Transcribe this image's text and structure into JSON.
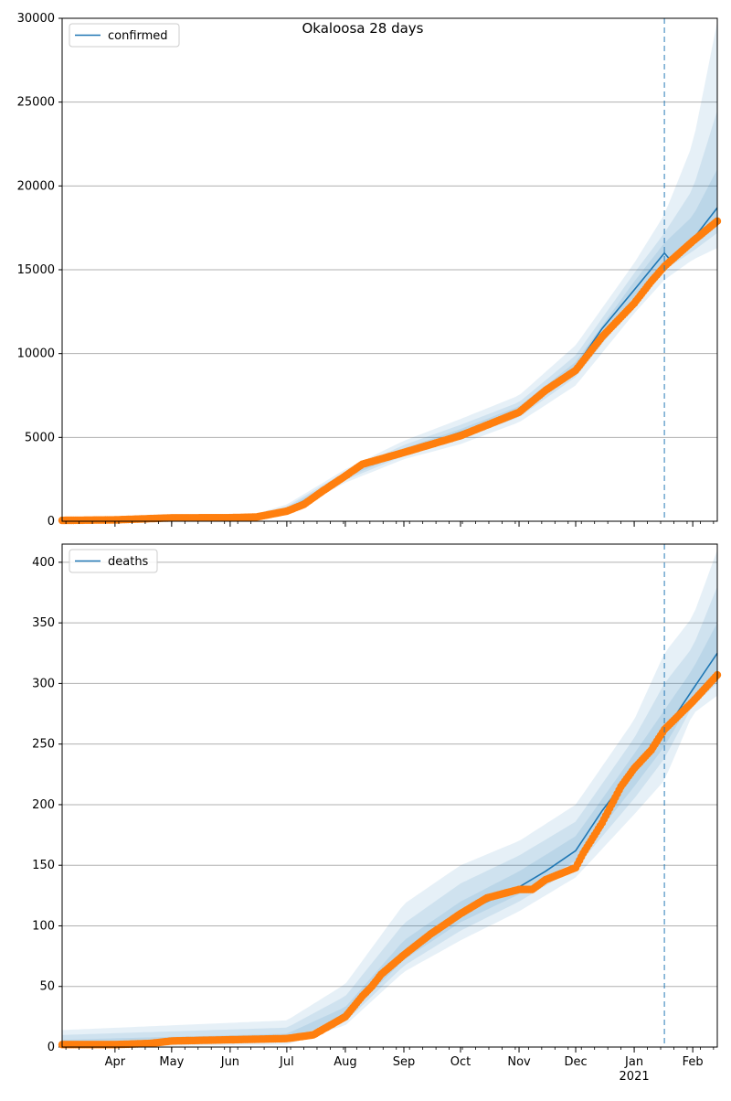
{
  "title": "Okaloosa 28 days",
  "colors": {
    "model_line": "#1f77b4",
    "observed": "#ff7f0e",
    "band": "#1f77b4",
    "grid": "#b0b0b0",
    "cutoff": "#1f77b4"
  },
  "x_axis": {
    "ticks": [
      {
        "date": "2020-04-01",
        "label": "Apr"
      },
      {
        "date": "2020-05-01",
        "label": "May"
      },
      {
        "date": "2020-06-01",
        "label": "Jun"
      },
      {
        "date": "2020-07-01",
        "label": "Jul"
      },
      {
        "date": "2020-08-01",
        "label": "Aug"
      },
      {
        "date": "2020-09-01",
        "label": "Sep"
      },
      {
        "date": "2020-10-01",
        "label": "Oct"
      },
      {
        "date": "2020-11-01",
        "label": "Nov"
      },
      {
        "date": "2020-12-01",
        "label": "Dec"
      },
      {
        "date": "2021-01-01",
        "label": "Jan",
        "sublabel": "2021"
      },
      {
        "date": "2021-02-01",
        "label": "Feb"
      }
    ],
    "xlim": [
      "2020-03-04",
      "2021-02-14"
    ],
    "cutoff_date": "2021-01-17"
  },
  "chart_data": [
    {
      "type": "line",
      "legend": "confirmed",
      "legend_position": "upper-left",
      "ylim": [
        0,
        30000
      ],
      "yticks": [
        "0",
        "5000",
        "10000",
        "15000",
        "20000",
        "25000",
        "30000"
      ],
      "grid": "horizontal",
      "model": [
        [
          "2020-03-04",
          50
        ],
        [
          "2020-04-01",
          80
        ],
        [
          "2020-05-01",
          200
        ],
        [
          "2020-06-01",
          220
        ],
        [
          "2020-06-15",
          280
        ],
        [
          "2020-07-01",
          700
        ],
        [
          "2020-07-15",
          1500
        ],
        [
          "2020-08-01",
          2700
        ],
        [
          "2020-08-10",
          3400
        ],
        [
          "2020-09-01",
          4200
        ],
        [
          "2020-10-01",
          5300
        ],
        [
          "2020-11-01",
          6600
        ],
        [
          "2020-11-15",
          7800
        ],
        [
          "2020-12-01",
          9200
        ],
        [
          "2020-12-15",
          11500
        ],
        [
          "2021-01-01",
          13800
        ],
        [
          "2021-01-17",
          16000
        ],
        [
          "2021-01-20",
          15600
        ],
        [
          "2021-02-01",
          16800
        ],
        [
          "2021-02-14",
          18700
        ]
      ],
      "observed": [
        [
          "2020-03-04",
          50
        ],
        [
          "2020-04-01",
          80
        ],
        [
          "2020-05-01",
          200
        ],
        [
          "2020-06-01",
          210
        ],
        [
          "2020-06-15",
          250
        ],
        [
          "2020-07-01",
          600
        ],
        [
          "2020-07-10",
          1000
        ],
        [
          "2020-07-20",
          1800
        ],
        [
          "2020-08-01",
          2700
        ],
        [
          "2020-08-10",
          3400
        ],
        [
          "2020-09-01",
          4100
        ],
        [
          "2020-10-01",
          5100
        ],
        [
          "2020-11-01",
          6500
        ],
        [
          "2020-11-15",
          7800
        ],
        [
          "2020-12-01",
          9000
        ],
        [
          "2020-12-15",
          11000
        ],
        [
          "2021-01-01",
          13000
        ],
        [
          "2021-01-10",
          14300
        ],
        [
          "2021-01-17",
          15200
        ],
        [
          "2021-02-01",
          16700
        ],
        [
          "2021-02-14",
          17900
        ]
      ],
      "bands": [
        {
          "name": "outer",
          "lower": [
            [
              "2020-03-04",
              0
            ],
            [
              "2020-06-15",
              150
            ],
            [
              "2020-07-01",
              450
            ],
            [
              "2020-08-01",
              2300
            ],
            [
              "2020-09-01",
              3700
            ],
            [
              "2020-10-01",
              4600
            ],
            [
              "2020-11-01",
              5900
            ],
            [
              "2020-12-01",
              8100
            ],
            [
              "2021-01-01",
              12400
            ],
            [
              "2021-01-17",
              14400
            ],
            [
              "2021-02-01",
              15600
            ],
            [
              "2021-02-14",
              16300
            ]
          ],
          "upper": [
            [
              "2020-03-04",
              200
            ],
            [
              "2020-06-15",
              450
            ],
            [
              "2020-07-01",
              1000
            ],
            [
              "2020-08-01",
              3100
            ],
            [
              "2020-09-01",
              4800
            ],
            [
              "2020-10-01",
              6100
            ],
            [
              "2020-11-01",
              7500
            ],
            [
              "2020-12-01",
              10500
            ],
            [
              "2021-01-01",
              15400
            ],
            [
              "2021-01-17",
              18300
            ],
            [
              "2021-02-01",
              22500
            ],
            [
              "2021-02-14",
              29800
            ]
          ]
        },
        {
          "name": "middle",
          "lower": [
            [
              "2020-03-04",
              20
            ],
            [
              "2020-06-15",
              200
            ],
            [
              "2020-07-01",
              550
            ],
            [
              "2020-08-01",
              2450
            ],
            [
              "2020-09-01",
              3900
            ],
            [
              "2020-10-01",
              4900
            ],
            [
              "2020-11-01",
              6200
            ],
            [
              "2020-12-01",
              8600
            ],
            [
              "2021-01-01",
              13000
            ],
            [
              "2021-01-17",
              15000
            ],
            [
              "2021-02-01",
              16100
            ],
            [
              "2021-02-14",
              17200
            ]
          ],
          "upper": [
            [
              "2020-03-04",
              120
            ],
            [
              "2020-06-15",
              380
            ],
            [
              "2020-07-01",
              880
            ],
            [
              "2020-08-01",
              2950
            ],
            [
              "2020-09-01",
              4550
            ],
            [
              "2020-10-01",
              5750
            ],
            [
              "2020-11-01",
              7100
            ],
            [
              "2020-12-01",
              9900
            ],
            [
              "2021-01-01",
              14800
            ],
            [
              "2021-01-17",
              17200
            ],
            [
              "2021-02-01",
              19800
            ],
            [
              "2021-02-14",
              24500
            ]
          ]
        },
        {
          "name": "inner",
          "lower": [
            [
              "2020-03-04",
              35
            ],
            [
              "2020-06-15",
              240
            ],
            [
              "2020-07-01",
              620
            ],
            [
              "2020-08-01",
              2580
            ],
            [
              "2020-09-01",
              4050
            ],
            [
              "2020-10-01",
              5100
            ],
            [
              "2020-11-01",
              6400
            ],
            [
              "2020-12-01",
              8900
            ],
            [
              "2021-01-01",
              13400
            ],
            [
              "2021-01-17",
              15500
            ],
            [
              "2021-02-01",
              16500
            ],
            [
              "2021-02-14",
              17800
            ]
          ],
          "upper": [
            [
              "2020-03-04",
              80
            ],
            [
              "2020-06-15",
              330
            ],
            [
              "2020-07-01",
              790
            ],
            [
              "2020-08-01",
              2820
            ],
            [
              "2020-09-01",
              4350
            ],
            [
              "2020-10-01",
              5500
            ],
            [
              "2020-11-01",
              6850
            ],
            [
              "2020-12-01",
              9500
            ],
            [
              "2021-01-01",
              14300
            ],
            [
              "2021-01-17",
              16600
            ],
            [
              "2021-02-01",
              18200
            ],
            [
              "2021-02-14",
              21000
            ]
          ]
        }
      ]
    },
    {
      "type": "line",
      "legend": "deaths",
      "legend_position": "upper-left",
      "ylim": [
        0,
        415
      ],
      "yticks": [
        "0",
        "50",
        "100",
        "150",
        "200",
        "250",
        "300",
        "350",
        "400"
      ],
      "grid": "horizontal",
      "model": [
        [
          "2020-03-04",
          2
        ],
        [
          "2020-04-01",
          3
        ],
        [
          "2020-05-01",
          5
        ],
        [
          "2020-06-01",
          7
        ],
        [
          "2020-07-01",
          8
        ],
        [
          "2020-07-15",
          12
        ],
        [
          "2020-08-01",
          28
        ],
        [
          "2020-08-15",
          52
        ],
        [
          "2020-09-01",
          78
        ],
        [
          "2020-09-15",
          96
        ],
        [
          "2020-10-01",
          110
        ],
        [
          "2020-10-15",
          120
        ],
        [
          "2020-11-01",
          132
        ],
        [
          "2020-11-15",
          145
        ],
        [
          "2020-12-01",
          162
        ],
        [
          "2020-12-15",
          195
        ],
        [
          "2021-01-01",
          230
        ],
        [
          "2021-01-17",
          260
        ],
        [
          "2021-02-01",
          295
        ],
        [
          "2021-02-14",
          325
        ]
      ],
      "observed": [
        [
          "2020-03-04",
          2
        ],
        [
          "2020-04-01",
          2
        ],
        [
          "2020-04-20",
          3
        ],
        [
          "2020-05-01",
          5
        ],
        [
          "2020-06-01",
          6
        ],
        [
          "2020-07-01",
          7
        ],
        [
          "2020-07-15",
          10
        ],
        [
          "2020-08-01",
          25
        ],
        [
          "2020-08-10",
          42
        ],
        [
          "2020-08-15",
          50
        ],
        [
          "2020-08-20",
          60
        ],
        [
          "2020-09-01",
          76
        ],
        [
          "2020-09-15",
          93
        ],
        [
          "2020-10-01",
          110
        ],
        [
          "2020-10-15",
          123
        ],
        [
          "2020-11-01",
          130
        ],
        [
          "2020-11-08",
          130
        ],
        [
          "2020-11-15",
          138
        ],
        [
          "2020-12-01",
          148
        ],
        [
          "2020-12-05",
          160
        ],
        [
          "2020-12-15",
          185
        ],
        [
          "2020-12-25",
          215
        ],
        [
          "2021-01-01",
          230
        ],
        [
          "2021-01-10",
          245
        ],
        [
          "2021-01-17",
          262
        ],
        [
          "2021-02-01",
          285
        ],
        [
          "2021-02-14",
          307
        ]
      ],
      "bands": [
        {
          "name": "outer",
          "lower": [
            [
              "2020-03-04",
              0
            ],
            [
              "2020-07-01",
              2
            ],
            [
              "2020-08-01",
              18
            ],
            [
              "2020-09-01",
              62
            ],
            [
              "2020-10-01",
              88
            ],
            [
              "2020-11-01",
              112
            ],
            [
              "2020-12-01",
              140
            ],
            [
              "2021-01-01",
              192
            ],
            [
              "2021-01-17",
              220
            ],
            [
              "2021-02-01",
              275
            ],
            [
              "2021-02-14",
              290
            ]
          ],
          "upper": [
            [
              "2020-03-04",
              14
            ],
            [
              "2020-07-01",
              22
            ],
            [
              "2020-08-01",
              52
            ],
            [
              "2020-09-01",
              118
            ],
            [
              "2020-10-01",
              150
            ],
            [
              "2020-11-01",
              170
            ],
            [
              "2020-12-01",
              200
            ],
            [
              "2021-01-01",
              270
            ],
            [
              "2021-01-17",
              325
            ],
            [
              "2021-02-01",
              355
            ],
            [
              "2021-02-14",
              410
            ]
          ]
        },
        {
          "name": "middle",
          "lower": [
            [
              "2020-03-04",
              0
            ],
            [
              "2020-07-01",
              4
            ],
            [
              "2020-08-01",
              21
            ],
            [
              "2020-09-01",
              67
            ],
            [
              "2020-10-01",
              96
            ],
            [
              "2020-11-01",
              120
            ],
            [
              "2020-12-01",
              148
            ],
            [
              "2021-01-01",
              205
            ],
            [
              "2021-01-17",
              238
            ],
            [
              "2021-02-01",
              282
            ],
            [
              "2021-02-14",
              300
            ]
          ],
          "upper": [
            [
              "2020-03-04",
              10
            ],
            [
              "2020-07-01",
              16
            ],
            [
              "2020-08-01",
              42
            ],
            [
              "2020-09-01",
              102
            ],
            [
              "2020-10-01",
              135
            ],
            [
              "2020-11-01",
              158
            ],
            [
              "2020-12-01",
              186
            ],
            [
              "2021-01-01",
              255
            ],
            [
              "2021-01-17",
              300
            ],
            [
              "2021-02-01",
              330
            ],
            [
              "2021-02-14",
              380
            ]
          ]
        },
        {
          "name": "inner",
          "lower": [
            [
              "2020-03-04",
              1
            ],
            [
              "2020-07-01",
              6
            ],
            [
              "2020-08-01",
              24
            ],
            [
              "2020-09-01",
              72
            ],
            [
              "2020-10-01",
              103
            ],
            [
              "2020-11-01",
              126
            ],
            [
              "2020-12-01",
              154
            ],
            [
              "2021-01-01",
              215
            ],
            [
              "2021-01-17",
              248
            ],
            [
              "2021-02-01",
              288
            ],
            [
              "2021-02-14",
              310
            ]
          ],
          "upper": [
            [
              "2020-03-04",
              6
            ],
            [
              "2020-07-01",
              11
            ],
            [
              "2020-08-01",
              33
            ],
            [
              "2020-09-01",
              88
            ],
            [
              "2020-10-01",
              120
            ],
            [
              "2020-11-01",
              145
            ],
            [
              "2020-12-01",
              174
            ],
            [
              "2021-01-01",
              242
            ],
            [
              "2021-01-17",
              278
            ],
            [
              "2021-02-01",
              312
            ],
            [
              "2021-02-14",
              350
            ]
          ]
        }
      ]
    }
  ]
}
